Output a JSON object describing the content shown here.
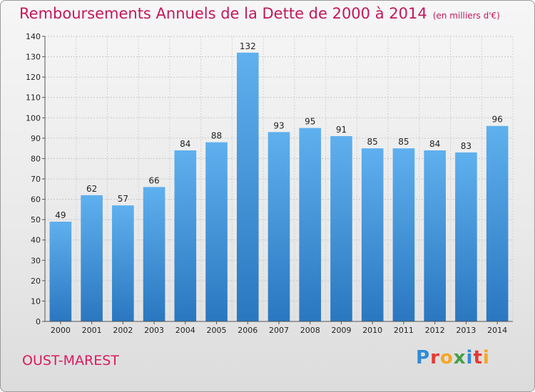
{
  "chart_data": {
    "type": "bar",
    "title": "Remboursements Annuels de la Dette de 2000 à 2014",
    "unit": "(en milliers d'€)",
    "categories": [
      "2000",
      "2001",
      "2002",
      "2003",
      "2004",
      "2005",
      "2006",
      "2007",
      "2008",
      "2009",
      "2010",
      "2011",
      "2012",
      "2013",
      "2014"
    ],
    "values": [
      49,
      62,
      57,
      66,
      84,
      88,
      132,
      93,
      95,
      91,
      85,
      85,
      84,
      83,
      96
    ],
    "ylim": [
      0,
      140
    ],
    "yticks": [
      0,
      10,
      20,
      30,
      40,
      50,
      60,
      70,
      80,
      90,
      100,
      110,
      120,
      130,
      140
    ],
    "grid": true,
    "bar_color": "#3a8fd8"
  },
  "footer": {
    "place": "OUST-MAREST",
    "logo": "Proxiti"
  }
}
